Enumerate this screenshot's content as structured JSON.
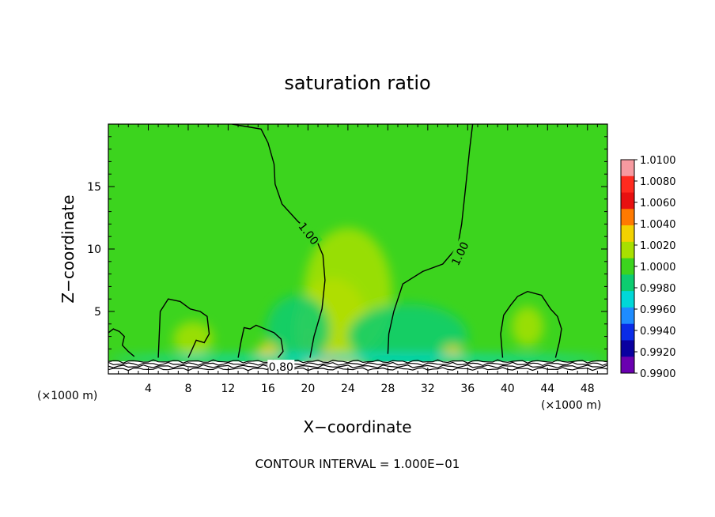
{
  "chart_data": {
    "type": "heatmap",
    "title": "saturation ratio",
    "xlabel": "X−coordinate",
    "ylabel": "Z−coordinate",
    "x_unit_left": "(×1000 m)",
    "x_unit_right": "(×1000 m)",
    "footer": "CONTOUR INTERVAL = 1.000E−01",
    "xlim": [
      0,
      50
    ],
    "ylim": [
      0,
      20
    ],
    "x_ticks": [
      4,
      8,
      12,
      16,
      20,
      24,
      28,
      32,
      36,
      40,
      44,
      48
    ],
    "y_ticks": [
      5,
      10,
      15
    ],
    "colorbar": {
      "labels": [
        "1.0100",
        "1.0080",
        "1.0060",
        "1.0040",
        "1.0020",
        "1.0000",
        "0.9980",
        "0.9960",
        "0.9940",
        "0.9920",
        "0.9900"
      ],
      "colors": [
        "#f79aa0",
        "#ff2a1f",
        "#e81010",
        "#ff7a00",
        "#f2d200",
        "#a8e000",
        "#3cd41e",
        "#0ccc70",
        "#00d8d8",
        "#1e8cff",
        "#0a2ce8",
        "#0a00a0",
        "#6a00b0"
      ],
      "min": 0.99,
      "max": 1.01
    },
    "contour_labels": [
      {
        "text": "1.00",
        "x": 20.0,
        "z": 11.2,
        "rotation": 52
      },
      {
        "text": "1.00",
        "x": 35.3,
        "z": 9.6,
        "rotation": -64
      },
      {
        "text": "0.80",
        "x": 17.3,
        "z": 0.5,
        "rotation": 0
      }
    ],
    "contour_paths": {
      "left_plume": [
        [
          12.4,
          20
        ],
        [
          15.3,
          19.6
        ],
        [
          16.0,
          18.5
        ],
        [
          16.6,
          16.8
        ],
        [
          16.7,
          15.2
        ],
        [
          17.4,
          13.6
        ],
        [
          19.0,
          12.2
        ],
        [
          20.7,
          11.0
        ],
        [
          21.5,
          9.5
        ],
        [
          21.7,
          7.5
        ],
        [
          21.4,
          5.2
        ],
        [
          20.6,
          3.0
        ],
        [
          20.2,
          1.3
        ]
      ],
      "right_plume": [
        [
          36.5,
          20
        ],
        [
          36.2,
          18.0
        ],
        [
          35.8,
          15.0
        ],
        [
          35.4,
          12.0
        ],
        [
          35.0,
          10.2
        ],
        [
          33.5,
          8.8
        ],
        [
          31.5,
          8.2
        ],
        [
          29.5,
          7.2
        ],
        [
          28.6,
          5.0
        ],
        [
          28.1,
          3.2
        ],
        [
          28.0,
          1.6
        ]
      ],
      "bubble_8": [
        [
          5.0,
          1.3
        ],
        [
          5.1,
          3.2
        ],
        [
          5.2,
          5.0
        ],
        [
          6.0,
          6.0
        ],
        [
          7.2,
          5.8
        ],
        [
          8.2,
          5.2
        ],
        [
          9.2,
          5.0
        ],
        [
          9.9,
          4.6
        ],
        [
          10.1,
          3.2
        ],
        [
          9.6,
          2.5
        ],
        [
          8.8,
          2.7
        ],
        [
          8.3,
          1.8
        ],
        [
          8.0,
          1.3
        ]
      ],
      "bubble_15": [
        [
          13.0,
          1.3
        ],
        [
          13.3,
          2.6
        ],
        [
          13.6,
          3.7
        ],
        [
          14.2,
          3.6
        ],
        [
          14.8,
          3.9
        ],
        [
          15.7,
          3.6
        ],
        [
          16.6,
          3.3
        ],
        [
          17.3,
          2.8
        ],
        [
          17.5,
          1.8
        ],
        [
          17.0,
          1.3
        ]
      ],
      "bubble_42": [
        [
          39.5,
          1.3
        ],
        [
          39.3,
          3.2
        ],
        [
          39.6,
          4.7
        ],
        [
          40.3,
          5.5
        ],
        [
          41.0,
          6.2
        ],
        [
          42.0,
          6.6
        ],
        [
          43.4,
          6.3
        ],
        [
          44.3,
          5.2
        ],
        [
          45.0,
          4.6
        ],
        [
          45.4,
          3.6
        ],
        [
          45.2,
          2.6
        ],
        [
          44.8,
          1.3
        ]
      ],
      "left_edge": [
        [
          0,
          3.3
        ],
        [
          0.5,
          3.6
        ],
        [
          1.1,
          3.4
        ],
        [
          1.6,
          3.0
        ],
        [
          1.4,
          2.3
        ],
        [
          2.0,
          1.8
        ],
        [
          2.6,
          1.4
        ]
      ]
    },
    "color_field": {
      "background_level": "1.0000",
      "features": [
        {
          "x": 22.0,
          "z": 1.8,
          "rx": 1.4,
          "rz": 1.3,
          "color": "#e81010"
        },
        {
          "x": 22.0,
          "z": 2.1,
          "rx": 2.4,
          "rz": 1.9,
          "color": "#ff7a00"
        },
        {
          "x": 22.5,
          "z": 3.5,
          "rx": 3.6,
          "rz": 4.2,
          "color": "#f2d200"
        },
        {
          "x": 24.0,
          "z": 6.5,
          "rx": 4.4,
          "rz": 5.2,
          "color": "#a8e000"
        },
        {
          "x": 30.0,
          "z": 3.0,
          "rx": 6.0,
          "rz": 2.6,
          "color": "#0ccc70"
        },
        {
          "x": 19.0,
          "z": 3.5,
          "rx": 3.2,
          "rz": 2.8,
          "color": "#0ccc70"
        },
        {
          "x": 16.0,
          "z": 1.6,
          "rx": 1.2,
          "rz": 0.9,
          "color": "#f2d200"
        },
        {
          "x": 34.5,
          "z": 1.6,
          "rx": 1.0,
          "rz": 0.7,
          "color": "#f2d200"
        },
        {
          "x": 8.5,
          "z": 2.8,
          "rx": 2.0,
          "rz": 1.4,
          "color": "#a8e000"
        },
        {
          "x": 42.0,
          "z": 3.8,
          "rx": 1.6,
          "rz": 1.6,
          "color": "#a8e000"
        },
        {
          "x": 25.0,
          "z": 1.2,
          "rx": 25.0,
          "rz": 0.35,
          "color": "#00d8d8"
        }
      ]
    }
  }
}
